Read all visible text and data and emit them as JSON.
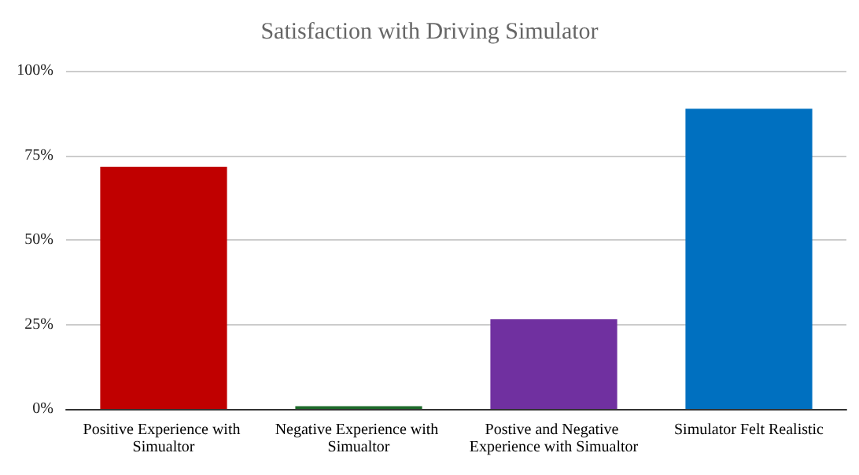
{
  "chart_data": {
    "type": "bar",
    "title": "Satisfaction with Driving Simulator",
    "categories": [
      "Positive Experience with Simualtor",
      "Negative Experience with Simualtor",
      "Postive and Negative Experience with Simualtor",
      "Simulator Felt Realistic"
    ],
    "values": [
      71.6,
      0.8,
      26.5,
      88.8
    ],
    "colors": [
      "#c00000",
      "#1e6b2a",
      "#7030a0",
      "#0070c0"
    ],
    "ylim": [
      0,
      100
    ],
    "yticks": [
      {
        "value": 0,
        "label": "0%"
      },
      {
        "value": 25,
        "label": "25%"
      },
      {
        "value": 50,
        "label": "50%"
      },
      {
        "value": 75,
        "label": "75%"
      },
      {
        "value": 100,
        "label": "100%"
      }
    ],
    "grid": "y"
  }
}
